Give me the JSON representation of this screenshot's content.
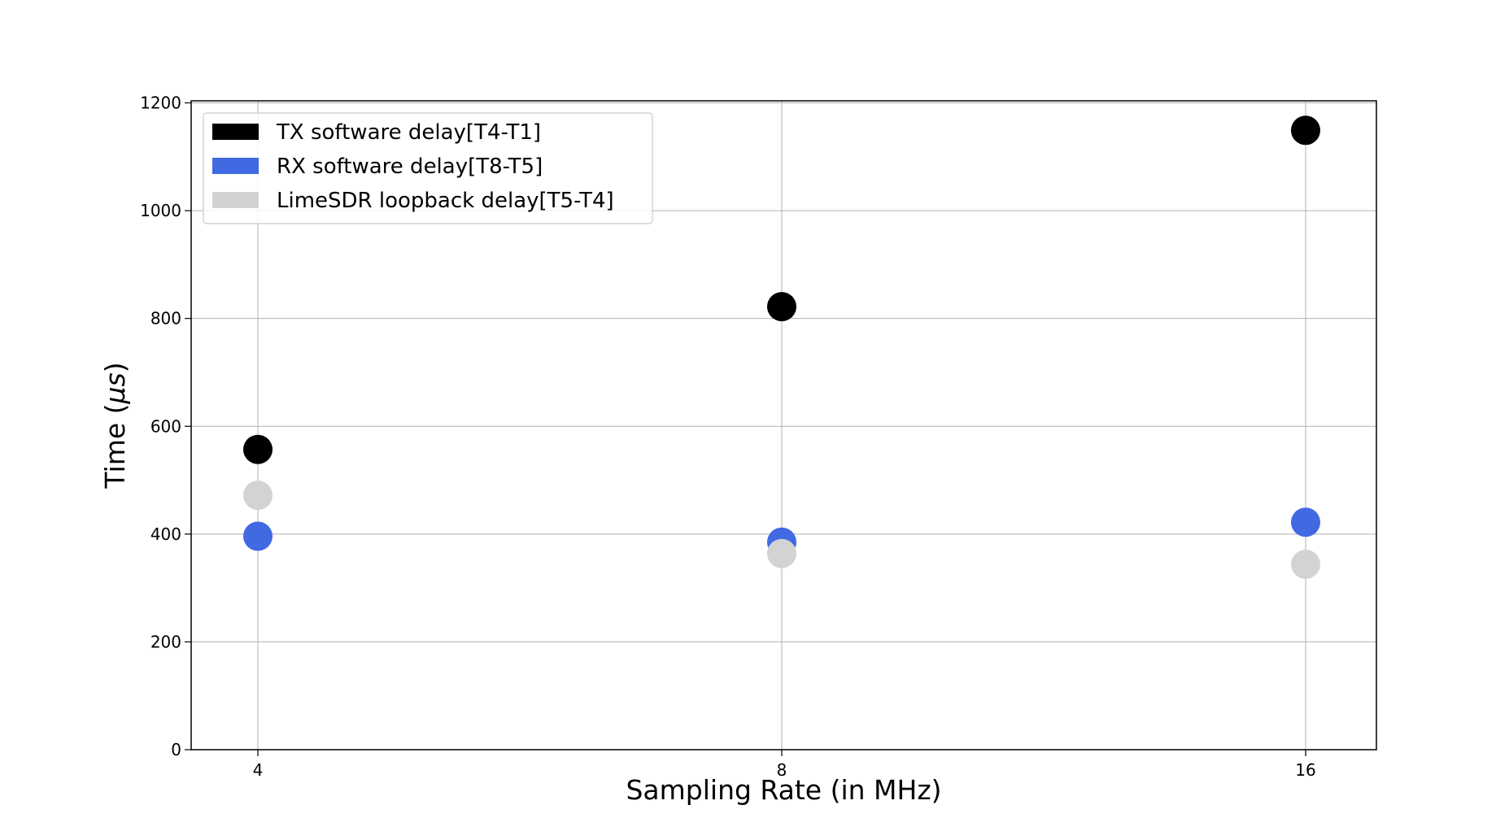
{
  "chart_data": {
    "type": "scatter",
    "xlabel": "Sampling Rate (in MHz)",
    "ylabel_prefix": "Time (",
    "ylabel_mu": "μs",
    "ylabel_suffix": ")",
    "categories": [
      "4",
      "8",
      "16"
    ],
    "ylim": [
      0,
      1200
    ],
    "yticks": [
      "0",
      "200",
      "400",
      "600",
      "800",
      "1000",
      "1200"
    ],
    "grid": true,
    "legend_position": "top-left",
    "series": [
      {
        "name": "TX software delay[T4-T1]",
        "color": "#000000",
        "values": [
          557,
          822,
          1149
        ]
      },
      {
        "name": "RX software delay[T8-T5]",
        "color": "#4169e1",
        "values": [
          396,
          385,
          422
        ]
      },
      {
        "name": "LimeSDR loopback delay[T5-T4]",
        "color": "#d3d3d3",
        "values": [
          472,
          364,
          344
        ]
      }
    ]
  }
}
